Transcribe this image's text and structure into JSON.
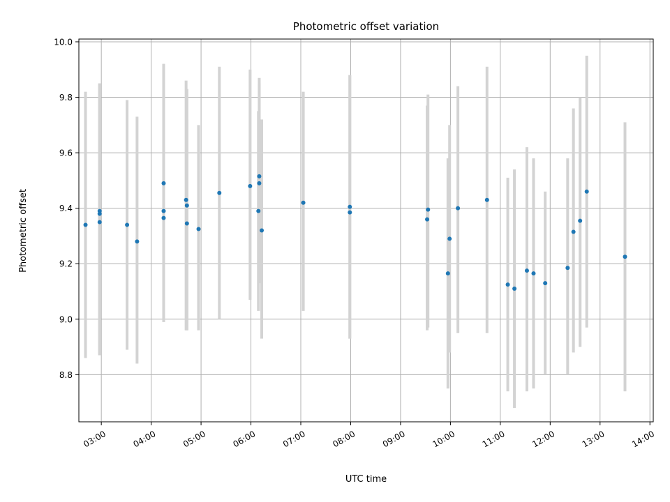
{
  "chart_data": {
    "type": "scatter",
    "title": "Photometric offset variation",
    "xlabel": "UTC time",
    "ylabel": "Photometric offset",
    "x_axis": "time (HH:MM UTC)",
    "xlim": [
      "02:33",
      "14:04"
    ],
    "ylim": [
      8.63,
      10.01
    ],
    "x_ticks": [
      "03:00",
      "04:00",
      "05:00",
      "06:00",
      "07:00",
      "08:00",
      "09:00",
      "10:00",
      "11:00",
      "12:00",
      "13:00",
      "14:00"
    ],
    "y_ticks": [
      8.8,
      9.0,
      9.2,
      9.4,
      9.6,
      9.8,
      10.0
    ],
    "y_tick_labels": [
      "8.8",
      "9.0",
      "9.2",
      "9.4",
      "9.6",
      "9.8",
      "10.0"
    ],
    "grid": true,
    "legend": "none",
    "colors": {
      "points": "#1f77b4",
      "error_bars": "#d3d3d3",
      "grid": "#b0b0b0",
      "axes": "#000000"
    },
    "points": [
      {
        "x": "02:41",
        "y": 9.34,
        "ylow": 8.86,
        "yhigh": 9.82
      },
      {
        "x": "02:58",
        "y": 9.39,
        "ylow": 8.87,
        "yhigh": 9.85
      },
      {
        "x": "02:58",
        "y": 9.38,
        "ylow": 8.87,
        "yhigh": 9.85
      },
      {
        "x": "02:58",
        "y": 9.35,
        "ylow": 8.87,
        "yhigh": 9.85
      },
      {
        "x": "03:31",
        "y": 9.34,
        "ylow": 8.89,
        "yhigh": 9.79
      },
      {
        "x": "03:43",
        "y": 9.28,
        "ylow": 8.84,
        "yhigh": 9.73
      },
      {
        "x": "04:15",
        "y": 9.49,
        "ylow": 8.99,
        "yhigh": 9.92
      },
      {
        "x": "04:15",
        "y": 9.39,
        "ylow": 8.99,
        "yhigh": 9.92
      },
      {
        "x": "04:15",
        "y": 9.365,
        "ylow": 8.99,
        "yhigh": 9.92
      },
      {
        "x": "04:42",
        "y": 9.43,
        "ylow": 8.96,
        "yhigh": 9.86
      },
      {
        "x": "04:43",
        "y": 9.41,
        "ylow": 8.96,
        "yhigh": 9.83
      },
      {
        "x": "04:43",
        "y": 9.345,
        "ylow": 8.96,
        "yhigh": 9.72
      },
      {
        "x": "04:57",
        "y": 9.325,
        "ylow": 8.96,
        "yhigh": 9.7
      },
      {
        "x": "05:22",
        "y": 9.455,
        "ylow": 9.0,
        "yhigh": 9.91
      },
      {
        "x": "05:59",
        "y": 9.48,
        "ylow": 9.07,
        "yhigh": 9.9
      },
      {
        "x": "06:09",
        "y": 9.39,
        "ylow": 9.03,
        "yhigh": 9.75
      },
      {
        "x": "06:10",
        "y": 9.515,
        "ylow": 9.13,
        "yhigh": 9.87
      },
      {
        "x": "06:10",
        "y": 9.49,
        "ylow": 9.13,
        "yhigh": 9.85
      },
      {
        "x": "06:13",
        "y": 9.32,
        "ylow": 8.93,
        "yhigh": 9.72
      },
      {
        "x": "07:03",
        "y": 9.42,
        "ylow": 9.03,
        "yhigh": 9.82
      },
      {
        "x": "07:59",
        "y": 9.405,
        "ylow": 8.93,
        "yhigh": 9.88
      },
      {
        "x": "07:59",
        "y": 9.385,
        "ylow": 8.93,
        "yhigh": 9.88
      },
      {
        "x": "09:32",
        "y": 9.36,
        "ylow": 8.96,
        "yhigh": 9.77
      },
      {
        "x": "09:33",
        "y": 9.395,
        "ylow": 8.97,
        "yhigh": 9.81
      },
      {
        "x": "09:57",
        "y": 9.165,
        "ylow": 8.75,
        "yhigh": 9.58
      },
      {
        "x": "09:59",
        "y": 9.29,
        "ylow": 8.88,
        "yhigh": 9.7
      },
      {
        "x": "10:09",
        "y": 9.4,
        "ylow": 8.95,
        "yhigh": 9.84
      },
      {
        "x": "10:44",
        "y": 9.43,
        "ylow": 8.95,
        "yhigh": 9.91
      },
      {
        "x": "11:09",
        "y": 9.125,
        "ylow": 8.74,
        "yhigh": 9.51
      },
      {
        "x": "11:17",
        "y": 9.11,
        "ylow": 8.68,
        "yhigh": 9.54
      },
      {
        "x": "11:32",
        "y": 9.175,
        "ylow": 8.74,
        "yhigh": 9.62
      },
      {
        "x": "11:40",
        "y": 9.165,
        "ylow": 8.75,
        "yhigh": 9.58
      },
      {
        "x": "11:54",
        "y": 9.13,
        "ylow": 8.8,
        "yhigh": 9.46
      },
      {
        "x": "12:21",
        "y": 9.185,
        "ylow": 8.8,
        "yhigh": 9.58
      },
      {
        "x": "12:28",
        "y": 9.315,
        "ylow": 8.88,
        "yhigh": 9.76
      },
      {
        "x": "12:36",
        "y": 9.355,
        "ylow": 8.9,
        "yhigh": 9.8
      },
      {
        "x": "12:44",
        "y": 9.46,
        "ylow": 8.97,
        "yhigh": 9.95
      },
      {
        "x": "13:30",
        "y": 9.225,
        "ylow": 8.74,
        "yhigh": 9.71
      }
    ]
  }
}
